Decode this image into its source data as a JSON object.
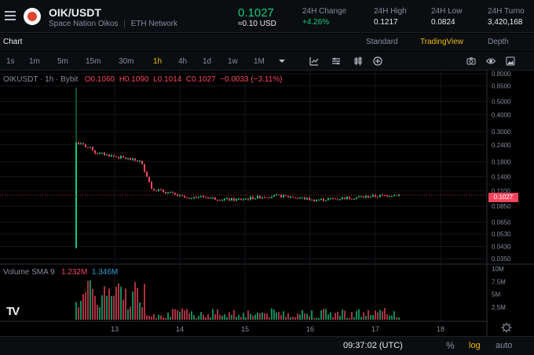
{
  "header": {
    "pair": "OIK/USDT",
    "name": "Space Nation Oikos",
    "network": "ETH Network",
    "price": "0.1027",
    "price_usd": "≈0.10 USD",
    "stats": [
      {
        "label": "24H Change",
        "value": "+4.26%"
      },
      {
        "label": "24H High",
        "value": "0.1217"
      },
      {
        "label": "24H Low",
        "value": "0.0824"
      },
      {
        "label": "24H Turno",
        "value": "3,420,168"
      }
    ]
  },
  "tabs": {
    "chart": "Chart",
    "views": [
      "Standard",
      "TradingView",
      "Depth"
    ]
  },
  "timeframes": [
    "1s",
    "1m",
    "5m",
    "15m",
    "30m",
    "1h",
    "4h",
    "1d",
    "1w",
    "1M"
  ],
  "active_timeframe": "1h",
  "ohlc": {
    "symbol": "OIKUSDT · 1h · Bybit",
    "o": "O0.1060",
    "h": "H0.1090",
    "l": "L0.1014",
    "c": "C0.1027",
    "change": "−0.0033 (−3.11%)"
  },
  "volume_legend": {
    "label": "Volume SMA 9",
    "v1": "1.232M",
    "v2": "1.346M"
  },
  "current_price_tag": "0.1027",
  "bottom": {
    "clock": "09:37:02 (UTC)",
    "pct": "%",
    "log": "log",
    "auto": "auto"
  },
  "tv_logo": "TV",
  "colors": {
    "up": "#0ecb81",
    "down": "#f6465d",
    "accent": "#f0b90b"
  },
  "chart_data": {
    "type": "candlestick",
    "scale": "log",
    "y_ticks": [
      "0.8000",
      "0.6500",
      "0.5000",
      "0.4000",
      "0.3000",
      "0.2400",
      "0.1800",
      "0.1400",
      "0.1100",
      "0.0850",
      "0.0650",
      "0.0530",
      "0.0430",
      "0.0350"
    ],
    "x_ticks": [
      "13",
      "14",
      "15",
      "16",
      "17",
      "18"
    ],
    "volume_ticks": [
      "10M",
      "7.5M",
      "5M",
      "2.5M"
    ],
    "ylim": [
      0.035,
      0.8
    ]
  }
}
